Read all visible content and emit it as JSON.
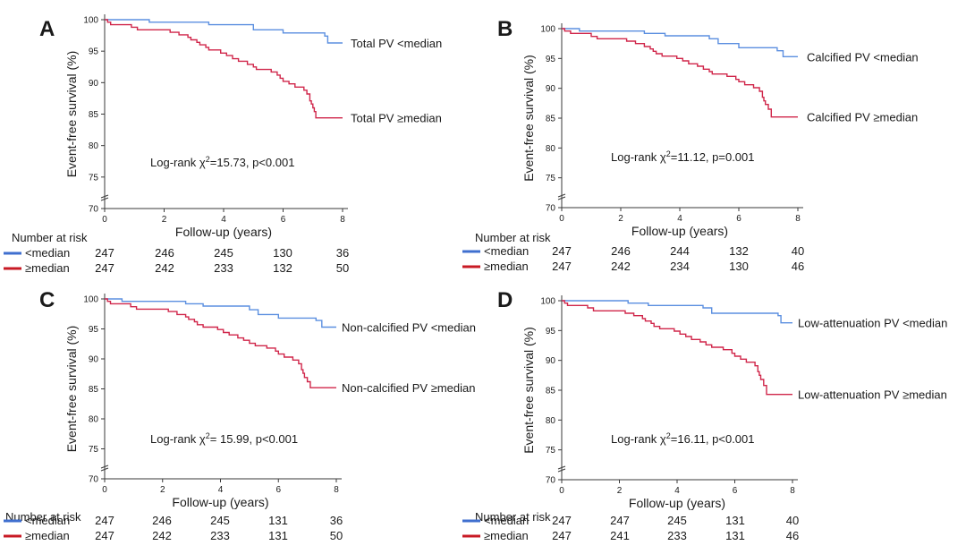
{
  "colors": {
    "below": "#5b8fe0",
    "above": "#d0264a",
    "axis": "#3a3a3a",
    "legend_below": "#3f6fcf",
    "legend_above": "#c81a24"
  },
  "chart_data": [
    {
      "panel": "A",
      "type": "line",
      "xlabel": "Follow-up (years)",
      "ylabel": "Event-free survival (%)",
      "xlim": [
        0,
        8
      ],
      "ylim": [
        70,
        100
      ],
      "xticks": [
        0,
        2,
        4,
        6,
        8
      ],
      "yticks": [
        70,
        75,
        80,
        85,
        90,
        95,
        100
      ],
      "annotation": {
        "prefix": "Log-rank χ",
        "sup": "2",
        "suffix": "=15.73, p<0.001"
      },
      "series": [
        {
          "name": "Total PV <median",
          "color": "#5b8fe0",
          "points": [
            [
              0,
              100
            ],
            [
              1.5,
              99.6
            ],
            [
              3.5,
              99.2
            ],
            [
              5,
              98.4
            ],
            [
              6,
              97.9
            ],
            [
              7.4,
              97.4
            ],
            [
              7.5,
              96.3
            ],
            [
              8,
              96.3
            ]
          ]
        },
        {
          "name": "Total PV ≥median",
          "color": "#d0264a",
          "points": [
            [
              0,
              100
            ],
            [
              0.1,
              99.6
            ],
            [
              0.2,
              99.2
            ],
            [
              0.9,
              98.8
            ],
            [
              1.1,
              98.4
            ],
            [
              2.2,
              98
            ],
            [
              2.5,
              97.6
            ],
            [
              2.8,
              97.2
            ],
            [
              2.9,
              96.8
            ],
            [
              3.1,
              96.4
            ],
            [
              3.2,
              96
            ],
            [
              3.4,
              95.6
            ],
            [
              3.5,
              95.2
            ],
            [
              3.9,
              94.7
            ],
            [
              4.1,
              94.3
            ],
            [
              4.3,
              93.8
            ],
            [
              4.5,
              93.4
            ],
            [
              4.8,
              92.9
            ],
            [
              5,
              92.5
            ],
            [
              5.1,
              92.1
            ],
            [
              5.6,
              91.7
            ],
            [
              5.8,
              91.2
            ],
            [
              5.9,
              90.7
            ],
            [
              6,
              90.2
            ],
            [
              6.2,
              89.8
            ],
            [
              6.4,
              89.3
            ],
            [
              6.7,
              88.8
            ],
            [
              6.8,
              88.2
            ],
            [
              6.9,
              87.1
            ],
            [
              6.95,
              86.6
            ],
            [
              7,
              86
            ],
            [
              7.05,
              85.4
            ],
            [
              7.1,
              84.4
            ],
            [
              8,
              84.4
            ]
          ]
        }
      ],
      "risk": {
        "header": "Number at risk",
        "rows": [
          {
            "label": "<median",
            "values": [
              "247",
              "246",
              "245",
              "130",
              "36"
            ]
          },
          {
            "label": "≥median",
            "values": [
              "247",
              "242",
              "233",
              "132",
              "50"
            ]
          }
        ]
      }
    },
    {
      "panel": "B",
      "type": "line",
      "xlabel": "Follow-up (years)",
      "ylabel": "Event-free survival (%)",
      "xlim": [
        0,
        8
      ],
      "ylim": [
        70,
        100
      ],
      "xticks": [
        0,
        2,
        4,
        6,
        8
      ],
      "yticks": [
        70,
        75,
        80,
        85,
        90,
        95,
        100
      ],
      "annotation": {
        "prefix": "Log-rank χ",
        "sup": "2",
        "suffix": "=11.12, p=0.001"
      },
      "series": [
        {
          "name": "Calcified PV <median",
          "color": "#5b8fe0",
          "points": [
            [
              0,
              100
            ],
            [
              0.6,
              99.6
            ],
            [
              2.8,
              99.2
            ],
            [
              3.5,
              98.8
            ],
            [
              5,
              98.3
            ],
            [
              5.3,
              97.5
            ],
            [
              6,
              96.8
            ],
            [
              7.3,
              96.3
            ],
            [
              7.5,
              95.3
            ],
            [
              8,
              95.3
            ]
          ]
        },
        {
          "name": "Calcified PV ≥median",
          "color": "#d0264a",
          "points": [
            [
              0,
              100
            ],
            [
              0.1,
              99.6
            ],
            [
              0.3,
              99.2
            ],
            [
              1,
              98.7
            ],
            [
              1.2,
              98.3
            ],
            [
              2.2,
              97.9
            ],
            [
              2.5,
              97.5
            ],
            [
              2.8,
              97
            ],
            [
              3,
              96.6
            ],
            [
              3.1,
              96.2
            ],
            [
              3.2,
              95.8
            ],
            [
              3.4,
              95.4
            ],
            [
              3.9,
              95
            ],
            [
              4.1,
              94.6
            ],
            [
              4.3,
              94.1
            ],
            [
              4.6,
              93.7
            ],
            [
              4.8,
              93.2
            ],
            [
              5,
              92.8
            ],
            [
              5.1,
              92.4
            ],
            [
              5.6,
              92
            ],
            [
              5.9,
              91.5
            ],
            [
              6,
              91.1
            ],
            [
              6.2,
              90.6
            ],
            [
              6.5,
              90.1
            ],
            [
              6.7,
              89.5
            ],
            [
              6.8,
              88.5
            ],
            [
              6.85,
              87.9
            ],
            [
              6.9,
              87.3
            ],
            [
              7,
              86.5
            ],
            [
              7.1,
              85.2
            ],
            [
              8,
              85.2
            ]
          ]
        }
      ],
      "risk": {
        "header": "Number at risk",
        "rows": [
          {
            "label": "<median",
            "values": [
              "247",
              "246",
              "244",
              "132",
              "40"
            ]
          },
          {
            "label": "≥median",
            "values": [
              "247",
              "242",
              "234",
              "130",
              "46"
            ]
          }
        ]
      }
    },
    {
      "panel": "C",
      "type": "line",
      "xlabel": "Follow-up (years)",
      "ylabel": "Event-free survival (%)",
      "xlim": [
        0,
        8
      ],
      "ylim": [
        70,
        100
      ],
      "xticks": [
        0,
        2,
        4,
        6,
        8
      ],
      "yticks": [
        70,
        75,
        80,
        85,
        90,
        95,
        100
      ],
      "annotation": {
        "prefix": "Log-rank χ",
        "sup": "2",
        "suffix": "= 15.99, p<0.001"
      },
      "series": [
        {
          "name": "Non-calcified PV <median",
          "color": "#5b8fe0",
          "points": [
            [
              0,
              100
            ],
            [
              0.6,
              99.6
            ],
            [
              2.8,
              99.2
            ],
            [
              3.4,
              98.8
            ],
            [
              5,
              98.2
            ],
            [
              5.3,
              97.4
            ],
            [
              6,
              96.8
            ],
            [
              7.3,
              96.4
            ],
            [
              7.5,
              95.3
            ],
            [
              8,
              95.3
            ]
          ]
        },
        {
          "name": "Non-calcified PV ≥median",
          "color": "#d0264a",
          "points": [
            [
              0,
              100
            ],
            [
              0.1,
              99.6
            ],
            [
              0.2,
              99.2
            ],
            [
              0.9,
              98.7
            ],
            [
              1.1,
              98.3
            ],
            [
              2.2,
              97.9
            ],
            [
              2.5,
              97.4
            ],
            [
              2.8,
              97
            ],
            [
              2.9,
              96.6
            ],
            [
              3.1,
              96.2
            ],
            [
              3.2,
              95.7
            ],
            [
              3.4,
              95.3
            ],
            [
              3.9,
              94.9
            ],
            [
              4.1,
              94.4
            ],
            [
              4.3,
              94
            ],
            [
              4.6,
              93.5
            ],
            [
              4.8,
              93.1
            ],
            [
              5,
              92.6
            ],
            [
              5.2,
              92.2
            ],
            [
              5.6,
              91.8
            ],
            [
              5.9,
              91.3
            ],
            [
              6,
              90.8
            ],
            [
              6.2,
              90.3
            ],
            [
              6.5,
              89.8
            ],
            [
              6.7,
              89.2
            ],
            [
              6.8,
              88.2
            ],
            [
              6.85,
              87.6
            ],
            [
              6.9,
              86.9
            ],
            [
              7,
              86.2
            ],
            [
              7.1,
              85.2
            ],
            [
              8,
              85.2
            ]
          ]
        }
      ],
      "risk": {
        "header": "Number at risk",
        "rows": [
          {
            "label": "<median",
            "values": [
              "247",
              "246",
              "245",
              "131",
              "36"
            ]
          },
          {
            "label": "≥median",
            "values": [
              "247",
              "242",
              "233",
              "131",
              "50"
            ]
          }
        ]
      }
    },
    {
      "panel": "D",
      "type": "line",
      "xlabel": "Follow-up (years)",
      "ylabel": "Event-free survival (%)",
      "xlim": [
        0,
        8
      ],
      "ylim": [
        70,
        100
      ],
      "xticks": [
        0,
        2,
        4,
        6,
        8
      ],
      "yticks": [
        70,
        75,
        80,
        85,
        90,
        95,
        100
      ],
      "annotation": {
        "prefix": "Log-rank χ",
        "sup": "2",
        "suffix": "=16.11, p<0.001"
      },
      "series": [
        {
          "name": "Low-attenuation PV <median",
          "color": "#5b8fe0",
          "points": [
            [
              0,
              100
            ],
            [
              2.3,
              99.6
            ],
            [
              3,
              99.2
            ],
            [
              4.9,
              98.8
            ],
            [
              5.2,
              97.9
            ],
            [
              7.5,
              97.5
            ],
            [
              7.6,
              96.3
            ],
            [
              8,
              96.3
            ]
          ]
        },
        {
          "name": "Low-attenuation PV ≥median",
          "color": "#d0264a",
          "points": [
            [
              0,
              100
            ],
            [
              0.1,
              99.6
            ],
            [
              0.2,
              99.2
            ],
            [
              0.9,
              98.8
            ],
            [
              1.1,
              98.3
            ],
            [
              2.2,
              97.9
            ],
            [
              2.5,
              97.5
            ],
            [
              2.8,
              97
            ],
            [
              2.9,
              96.6
            ],
            [
              3.1,
              96.2
            ],
            [
              3.2,
              95.7
            ],
            [
              3.4,
              95.3
            ],
            [
              3.9,
              94.9
            ],
            [
              4.1,
              94.4
            ],
            [
              4.3,
              94
            ],
            [
              4.5,
              93.5
            ],
            [
              4.8,
              93.1
            ],
            [
              5,
              92.6
            ],
            [
              5.2,
              92.2
            ],
            [
              5.6,
              91.8
            ],
            [
              5.9,
              91.2
            ],
            [
              6,
              90.7
            ],
            [
              6.2,
              90.2
            ],
            [
              6.4,
              89.7
            ],
            [
              6.7,
              89.1
            ],
            [
              6.8,
              88.1
            ],
            [
              6.85,
              87.5
            ],
            [
              6.9,
              86.8
            ],
            [
              7,
              85.8
            ],
            [
              7.1,
              84.3
            ],
            [
              8,
              84.3
            ]
          ]
        }
      ],
      "risk": {
        "header": "Number at risk",
        "rows": [
          {
            "label": "<median",
            "values": [
              "247",
              "247",
              "245",
              "131",
              "40"
            ]
          },
          {
            "label": "≥median",
            "values": [
              "247",
              "241",
              "233",
              "131",
              "46"
            ]
          }
        ]
      }
    }
  ]
}
